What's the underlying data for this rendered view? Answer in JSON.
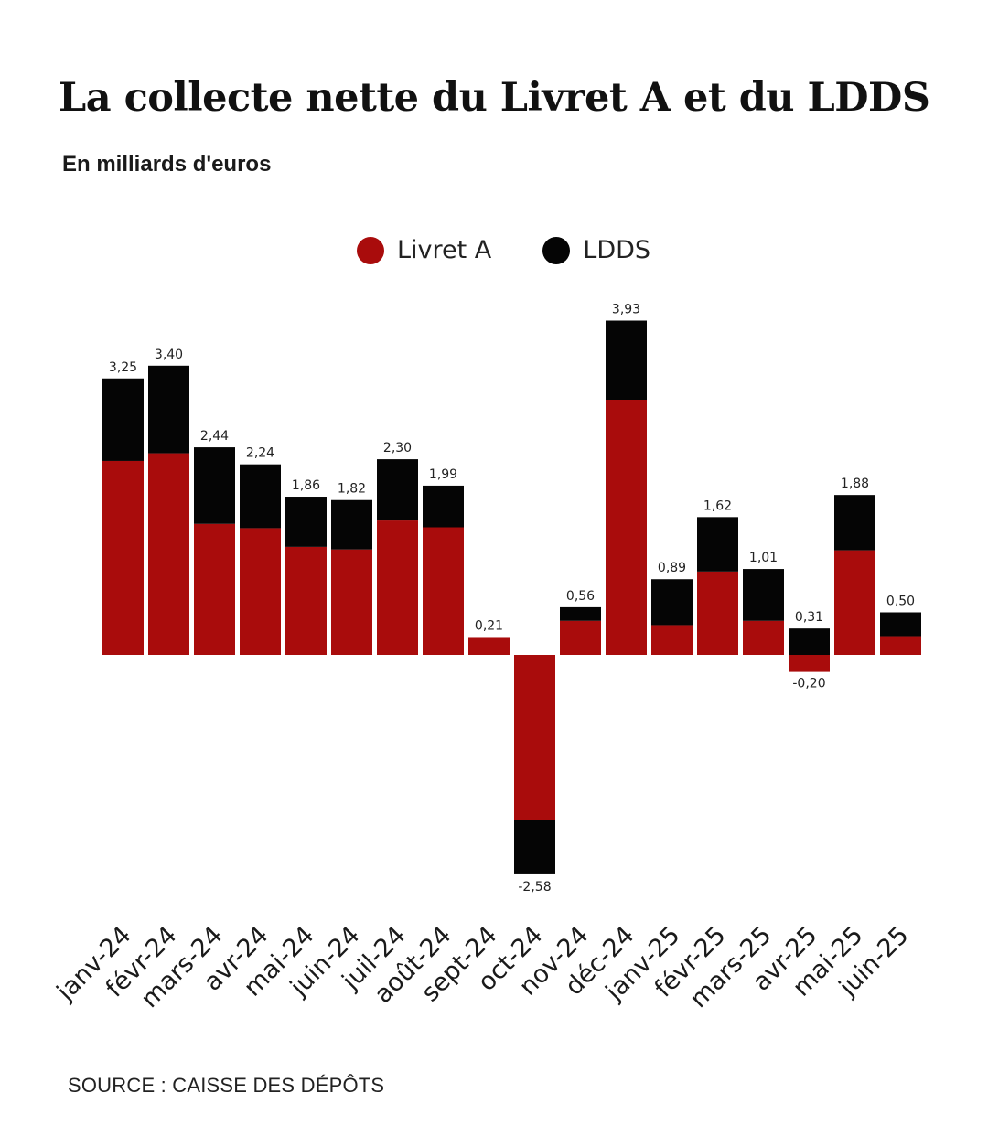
{
  "title": "La collecte nette du Livret A et du LDDS",
  "subtitle": "En milliards d'euros",
  "source": "SOURCE : CAISSE DES DÉPÔTS",
  "colors": {
    "livret_a": "#a90c0c",
    "ldds": "#050505"
  },
  "chart_data": {
    "type": "bar",
    "stacked": true,
    "categories": [
      "janv-24",
      "févr-24",
      "mars-24",
      "avr-24",
      "mai-24",
      "juin-24",
      "juil-24",
      "août-24",
      "sept-24",
      "oct-24",
      "nov-24",
      "déc-24",
      "janv-25",
      "févr-25",
      "mars-25",
      "avr-25",
      "mai-25",
      "juin-25"
    ],
    "series": [
      {
        "name": "Livret A",
        "values": [
          2.28,
          2.37,
          1.54,
          1.49,
          1.27,
          1.24,
          1.58,
          1.5,
          0.21,
          -1.94,
          0.4,
          3.0,
          0.35,
          0.98,
          0.4,
          -0.2,
          1.23,
          0.22
        ]
      },
      {
        "name": "LDDS",
        "values": [
          0.97,
          1.03,
          0.9,
          0.75,
          0.59,
          0.58,
          0.72,
          0.49,
          0.0,
          -0.64,
          0.16,
          0.93,
          0.54,
          0.64,
          0.61,
          0.31,
          0.65,
          0.28
        ]
      }
    ],
    "totals": [
      3.25,
      3.4,
      2.44,
      2.24,
      1.86,
      1.82,
      2.3,
      1.99,
      0.21,
      -2.58,
      0.56,
      3.93,
      0.89,
      1.62,
      1.01,
      0.31,
      1.88,
      0.5
    ],
    "value_labels": [
      "3,25",
      "3,40",
      "2,44",
      "2,24",
      "1,86",
      "1,82",
      "2,30",
      "1,99",
      "0,21",
      "-2,58",
      "0,56",
      "3,93",
      "0,89",
      "1,62",
      "1,01",
      "0,31",
      "1,88",
      "0,50"
    ],
    "extra_labels": [
      {
        "category": "avr-25",
        "label": "-0,20",
        "value": -0.2
      }
    ],
    "ylim": [
      -2.58,
      3.93
    ],
    "grid": false,
    "legend": "top-center"
  }
}
